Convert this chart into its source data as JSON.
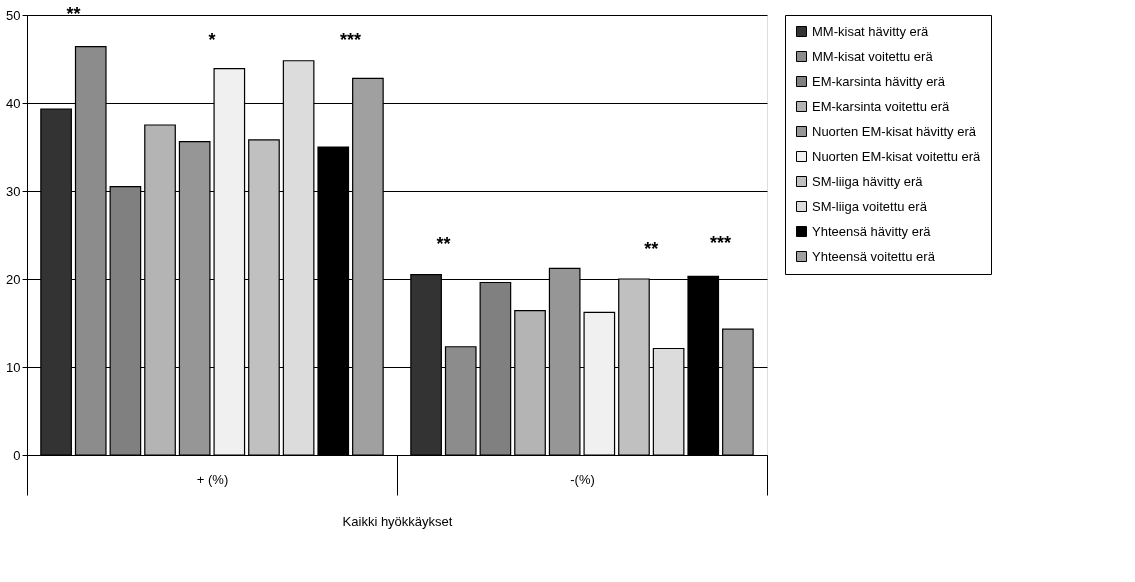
{
  "chart_data": {
    "type": "bar",
    "xlabel": "Kaikki hyökkäykset",
    "categories": [
      "+ (%)",
      "-(%)"
    ],
    "series": [
      {
        "name": "MM-kisat hävitty erä",
        "color": "#333333",
        "values": [
          39.3,
          20.5
        ]
      },
      {
        "name": "MM-kisat voitettu erä",
        "color": "#8c8c8c",
        "values": [
          46.4,
          12.3
        ]
      },
      {
        "name": "EM-karsinta hävitty erä",
        "color": "#808080",
        "values": [
          30.5,
          19.6
        ]
      },
      {
        "name": "EM-karsinta voitettu erä",
        "color": "#b4b4b4",
        "values": [
          37.5,
          16.4
        ]
      },
      {
        "name": "Nuorten EM-kisat hävitty erä",
        "color": "#969696",
        "values": [
          35.6,
          21.2
        ]
      },
      {
        "name": "Nuorten EM-kisat voitettu erä",
        "color": "#f0f0f0",
        "values": [
          43.9,
          16.2
        ]
      },
      {
        "name": "SM-liiga hävitty erä",
        "color": "#c0c0c0",
        "values": [
          35.8,
          20.0
        ]
      },
      {
        "name": "SM-liiga voitettu erä",
        "color": "#dcdcdc",
        "values": [
          44.8,
          12.1
        ]
      },
      {
        "name": "Yhteensä hävitty erä",
        "color": "#000000",
        "values": [
          35.0,
          20.3
        ]
      },
      {
        "name": "Yhteensä voitettu erä",
        "color": "#a0a0a0",
        "values": [
          42.8,
          14.3
        ]
      }
    ],
    "ylim": [
      0,
      50
    ],
    "yticks": [
      0,
      10,
      20,
      30,
      40,
      50
    ],
    "grid": "y",
    "legend": "right",
    "annotations": [
      "**",
      "*",
      "***",
      "**",
      "**",
      "***"
    ]
  }
}
